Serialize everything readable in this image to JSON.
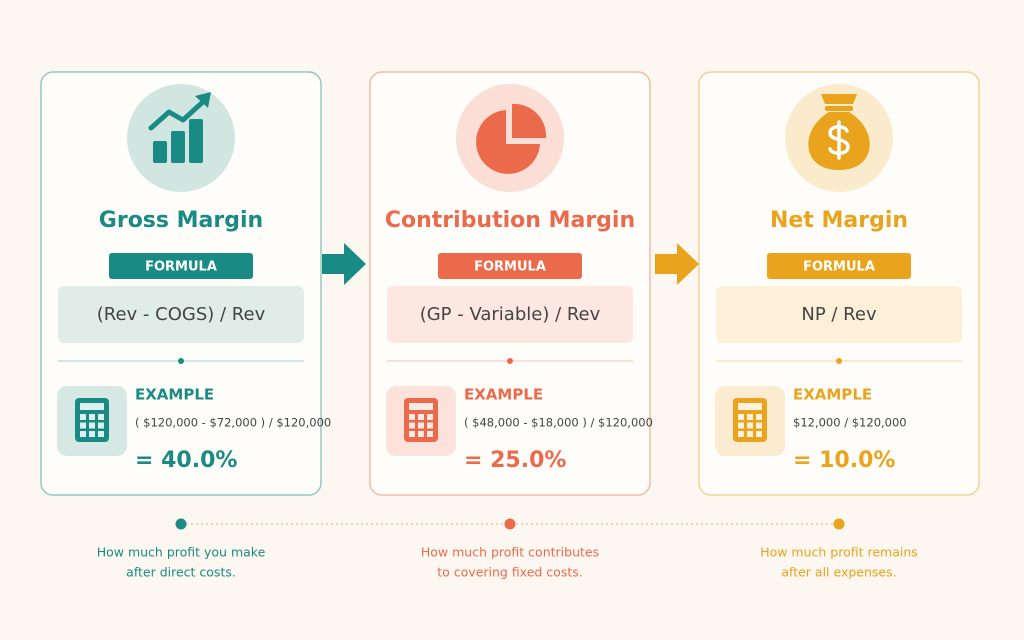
{
  "cards": [
    {
      "title": "Gross Margin",
      "color": "#1a8a84",
      "formula_label": "FORMULA",
      "formula": "(Rev - COGS) / Rev",
      "example_label": "EXAMPLE",
      "example": "( $120,000 - $72,000 ) / $120,000",
      "result": "= 40.0%",
      "description": [
        "How much profit you make",
        "after direct costs."
      ]
    },
    {
      "title": "Contribution Margin",
      "color": "#ec6a4c",
      "formula_label": "FORMULA",
      "formula": "(GP - Variable) / Rev",
      "example_label": "EXAMPLE",
      "example": "( $48,000 - $18,000 ) / $120,000",
      "result": "= 25.0%",
      "description": [
        "How much profit contributes",
        "to covering fixed costs."
      ]
    },
    {
      "title": "Net Margin",
      "color": "#e9a31c",
      "formula_label": "FORMULA",
      "formula": "NP / Rev",
      "example_label": "EXAMPLE",
      "example": "$12,000 / $120,000",
      "result": "= 10.0%",
      "description": [
        "How much profit remains",
        "after all expenses."
      ]
    }
  ]
}
